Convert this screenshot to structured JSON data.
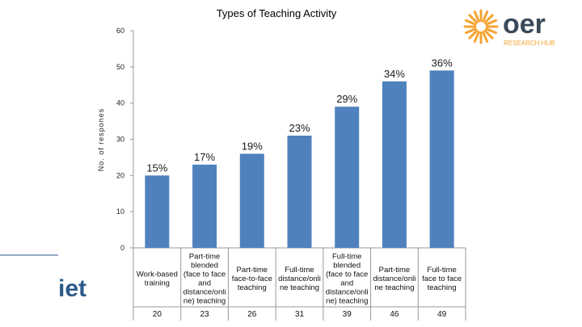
{
  "chart_data": {
    "type": "bar",
    "title": "Types of Teaching Activity",
    "ylabel": "No. of respones",
    "xlabel": "",
    "ylim": [
      0,
      60
    ],
    "yticks": [
      0,
      10,
      20,
      30,
      40,
      50,
      60
    ],
    "grid": false,
    "legend": "none",
    "bar_color": "#4F81BD",
    "categories": [
      [
        "Work-based",
        "training"
      ],
      [
        "Part-time",
        "blended",
        "(face to face",
        "and",
        "distance/onli",
        "ne) teaching"
      ],
      [
        "Part-time",
        "face-to-face",
        "teaching"
      ],
      [
        "Full-time",
        "distance/onli",
        "ne teaching"
      ],
      [
        "Full-time",
        "blended",
        "(face to face",
        "and",
        "distance/onli",
        "ne) teaching"
      ],
      [
        "Part-time",
        "distance/onli",
        "ne teaching"
      ],
      [
        "Full-time",
        "face to face",
        "teaching"
      ]
    ],
    "values": [
      20,
      23,
      26,
      31,
      39,
      46,
      49
    ],
    "value_labels": [
      "20",
      "23",
      "26",
      "31",
      "39",
      "46",
      "49"
    ],
    "percent_labels": [
      "15%",
      "17%",
      "19%",
      "23%",
      "29%",
      "34%",
      "36%"
    ]
  },
  "logos": {
    "oer_text": "oer",
    "oer_subtext": "RESEARCH HUB",
    "oer_color": "#F5A331",
    "oer_text_color": "#3B4A5A",
    "iet_text": "iet",
    "iet_color": "#2C5A88"
  }
}
